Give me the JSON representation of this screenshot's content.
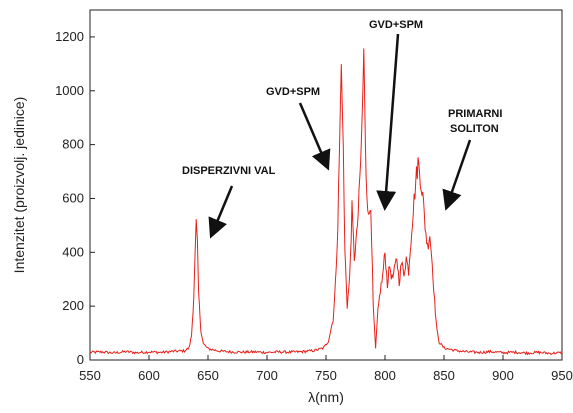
{
  "chart_data": {
    "type": "line",
    "xlabel": "λ(nm)",
    "ylabel": "Intenzitet (proizvolj. jedinice)",
    "xlim": [
      550,
      950
    ],
    "ylim": [
      0,
      1300
    ],
    "xticks": [
      550,
      600,
      650,
      700,
      750,
      800,
      850,
      900,
      950
    ],
    "yticks": [
      0,
      200,
      400,
      600,
      800,
      1000,
      1200
    ],
    "grid": false,
    "line_color": "#e8201a",
    "series": [
      {
        "points": [
          [
            550,
            28
          ],
          [
            560,
            30
          ],
          [
            570,
            26
          ],
          [
            580,
            31
          ],
          [
            590,
            27
          ],
          [
            600,
            30
          ],
          [
            610,
            28
          ],
          [
            620,
            32
          ],
          [
            630,
            34
          ],
          [
            634,
            45
          ],
          [
            636,
            90
          ],
          [
            638,
            240
          ],
          [
            640,
            505
          ],
          [
            641,
            420
          ],
          [
            642,
            250
          ],
          [
            644,
            110
          ],
          [
            646,
            60
          ],
          [
            650,
            42
          ],
          [
            660,
            33
          ],
          [
            670,
            30
          ],
          [
            680,
            29
          ],
          [
            690,
            30
          ],
          [
            700,
            28
          ],
          [
            710,
            30
          ],
          [
            720,
            29
          ],
          [
            730,
            31
          ],
          [
            740,
            35
          ],
          [
            748,
            45
          ],
          [
            752,
            70
          ],
          [
            756,
            150
          ],
          [
            758,
            280
          ],
          [
            760,
            500
          ],
          [
            762,
            900
          ],
          [
            763,
            1090
          ],
          [
            764,
            950
          ],
          [
            766,
            400
          ],
          [
            768,
            200
          ],
          [
            770,
            300
          ],
          [
            772,
            560
          ],
          [
            774,
            380
          ],
          [
            776,
            460
          ],
          [
            778,
            600
          ],
          [
            780,
            800
          ],
          [
            782,
            1130
          ],
          [
            784,
            700
          ],
          [
            786,
            520
          ],
          [
            788,
            590
          ],
          [
            790,
            200
          ],
          [
            792,
            40
          ],
          [
            794,
            180
          ],
          [
            796,
            260
          ],
          [
            798,
            310
          ],
          [
            800,
            400
          ],
          [
            802,
            280
          ],
          [
            804,
            350
          ],
          [
            806,
            300
          ],
          [
            808,
            330
          ],
          [
            810,
            380
          ],
          [
            812,
            290
          ],
          [
            814,
            360
          ],
          [
            816,
            320
          ],
          [
            818,
            380
          ],
          [
            820,
            330
          ],
          [
            822,
            450
          ],
          [
            824,
            560
          ],
          [
            826,
            660
          ],
          [
            828,
            735
          ],
          [
            830,
            680
          ],
          [
            832,
            610
          ],
          [
            834,
            500
          ],
          [
            836,
            420
          ],
          [
            838,
            470
          ],
          [
            840,
            360
          ],
          [
            842,
            220
          ],
          [
            844,
            110
          ],
          [
            846,
            65
          ],
          [
            850,
            45
          ],
          [
            860,
            35
          ],
          [
            870,
            30
          ],
          [
            880,
            28
          ],
          [
            890,
            31
          ],
          [
            900,
            27
          ],
          [
            910,
            29
          ],
          [
            920,
            26
          ],
          [
            930,
            28
          ],
          [
            940,
            25
          ],
          [
            950,
            27
          ]
        ]
      }
    ],
    "annotations": [
      {
        "text": "DISPERZIVNI VAL"
      },
      {
        "text": "GVD+SPM"
      },
      {
        "text": "GVD+SPM"
      },
      {
        "text": "PRIMARNI"
      },
      {
        "text": "SOLITON"
      }
    ]
  }
}
